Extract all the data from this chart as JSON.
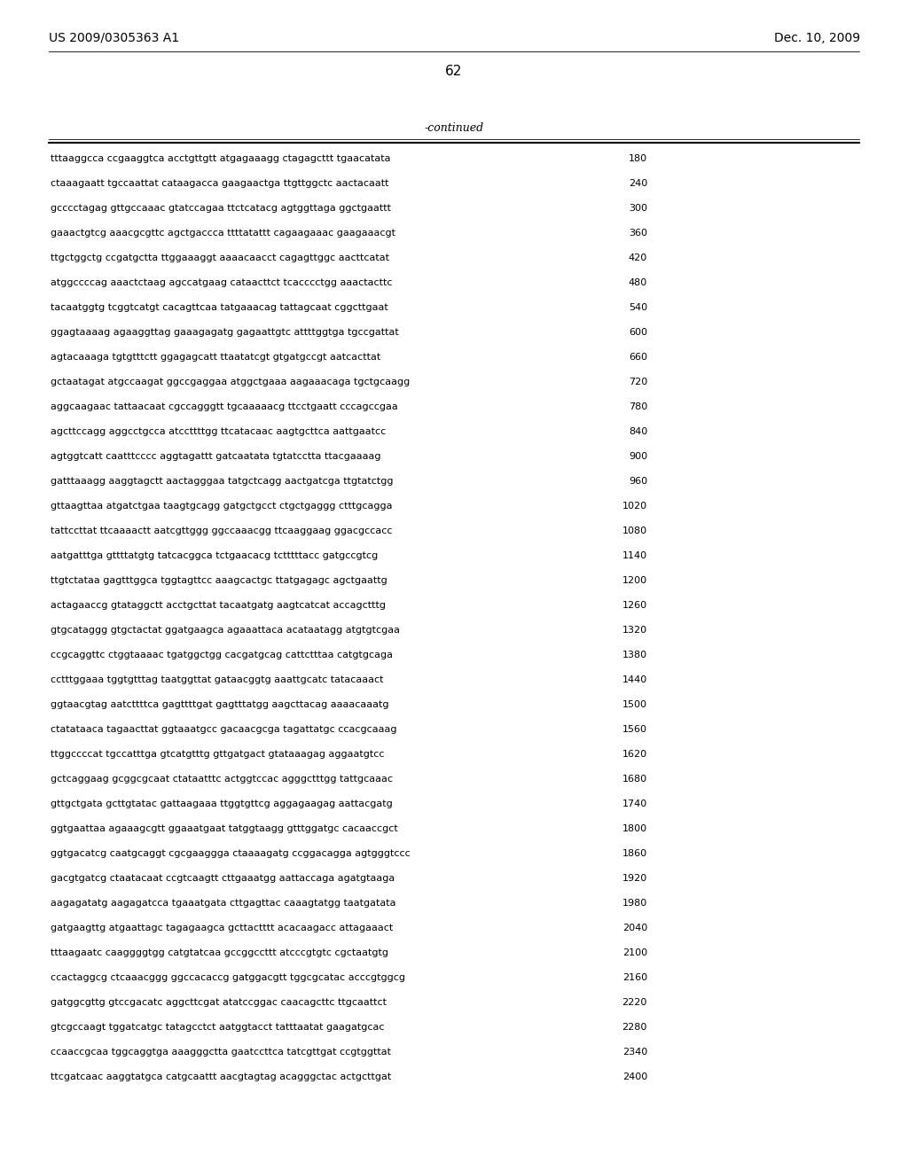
{
  "header_left": "US 2009/0305363 A1",
  "header_right": "Dec. 10, 2009",
  "page_number": "62",
  "continued_label": "-continued",
  "background_color": "#ffffff",
  "text_color": "#000000",
  "sequence_lines": [
    [
      "tttaaggcca ccgaaggtca acctgttgtt atgagaaagg ctagagcttt tgaacatata",
      "180"
    ],
    [
      "ctaaagaatt tgccaattat cataagacca gaagaactga ttgttggctc aactacaatt",
      "240"
    ],
    [
      "gcccctagag gttgccaaac gtatccagaa ttctcatacg agtggttaga ggctgaattt",
      "300"
    ],
    [
      "gaaactgtcg aaacgcgttc agctgaccca ttttatattt cagaagaaac gaagaaacgt",
      "360"
    ],
    [
      "ttgctggctg ccgatgctta ttggaaaggt aaaacaacct cagagttggc aacttcatat",
      "420"
    ],
    [
      "atggccccag aaactctaag agccatgaag cataacttct tcacccctgg aaactacttc",
      "480"
    ],
    [
      "tacaatggtg tcggtcatgt cacagttcaa tatgaaacag tattagcaat cggcttgaat",
      "540"
    ],
    [
      "ggagtaaaag agaaggttag gaaagagatg gagaattgtc attttggtga tgccgattat",
      "600"
    ],
    [
      "agtacaaaga tgtgtttctt ggagagcatt ttaatatcgt gtgatgccgt aatcacttat",
      "660"
    ],
    [
      "gctaatagat atgccaagat ggccgaggaa atggctgaaa aagaaacaga tgctgcaagg",
      "720"
    ],
    [
      "aggcaagaac tattaacaat cgccagggtt tgcaaaaacg ttcctgaatt cccagccgaa",
      "780"
    ],
    [
      "agcttccagg aggcctgcca atccttttgg ttcatacaac aagtgcttca aattgaatcc",
      "840"
    ],
    [
      "agtggtcatt caatttcccc aggtagattt gatcaatata tgtatcctta ttacgaaaag",
      "900"
    ],
    [
      "gatttaaagg aaggtagctt aactagggaa tatgctcagg aactgatcga ttgtatctgg",
      "960"
    ],
    [
      "gttaagttaa atgatctgaa taagtgcagg gatgctgcct ctgctgaggg ctttgcagga",
      "1020"
    ],
    [
      "tattccttat ttcaaaactt aatcgttggg ggccaaacgg ttcaaggaag ggacgccacc",
      "1080"
    ],
    [
      "aatgatttga gttttatgtg tatcacggca tctgaacacg tctttttacc gatgccgtcg",
      "1140"
    ],
    [
      "ttgtctataa gagtttggca tggtagttcc aaagcactgc ttatgagagc agctgaattg",
      "1200"
    ],
    [
      "actagaaccg gtataggctt acctgcttat tacaatgatg aagtcatcat accagctttg",
      "1260"
    ],
    [
      "gtgcataggg gtgctactat ggatgaagca agaaattaca acataatagg atgtgtcgaa",
      "1320"
    ],
    [
      "ccgcaggttc ctggtaaaac tgatggctgg cacgatgcag cattctttaa catgtgcaga",
      "1380"
    ],
    [
      "cctttggaaa tggtgtttag taatggttat gataacggtg aaattgcatc tatacaaact",
      "1440"
    ],
    [
      "ggtaacgtag aatcttttca gagttttgat gagtttatgg aagcttacag aaaacaaatg",
      "1500"
    ],
    [
      "ctatataaca tagaacttat ggtaaatgcc gacaacgcga tagattatgc ccacgcaaag",
      "1560"
    ],
    [
      "ttggccccat tgccatttga gtcatgtttg gttgatgact gtataaagag aggaatgtcc",
      "1620"
    ],
    [
      "gctcaggaag gcggcgcaat ctataatttc actggtccac agggctttgg tattgcaaac",
      "1680"
    ],
    [
      "gttgctgata gcttgtatac gattaagaaa ttggtgttcg aggagaagag aattacgatg",
      "1740"
    ],
    [
      "ggtgaattaa agaaagcgtt ggaaatgaat tatggtaagg gtttggatgc cacaaccgct",
      "1800"
    ],
    [
      "ggtgacatcg caatgcaggt cgcgaaggga ctaaaagatg ccggacagga agtgggtccc",
      "1860"
    ],
    [
      "gacgtgatcg ctaatacaat ccgtcaagtt cttgaaatgg aattaccaga agatgtaaga",
      "1920"
    ],
    [
      "aagagatatg aagagatcca tgaaatgata cttgagttac caaagtatgg taatgatata",
      "1980"
    ],
    [
      "gatgaagttg atgaattagc tagagaagca gcttactttt acacaagacc attagaaact",
      "2040"
    ],
    [
      "tttaagaatc caaggggtgg catgtatcaa gccggccttt atcccgtgtc cgctaatgtg",
      "2100"
    ],
    [
      "ccactaggcg ctcaaacggg ggccacaccg gatggacgtt tggcgcatac acccgtggcg",
      "2160"
    ],
    [
      "gatggcgttg gtccgacatc aggcttcgat atatccggac caacagcttc ttgcaattct",
      "2220"
    ],
    [
      "gtcgccaagt tggatcatgc tatagcctct aatggtacct tatttaatat gaagatgcac",
      "2280"
    ],
    [
      "ccaaccgcaa tggcaggtga aaagggctta gaatccttca tatcgttgat ccgtggttat",
      "2340"
    ],
    [
      "ttcgatcaac aaggtatgca catgcaattt aacgtagtag acagggctac actgcttgat",
      "2400"
    ]
  ]
}
